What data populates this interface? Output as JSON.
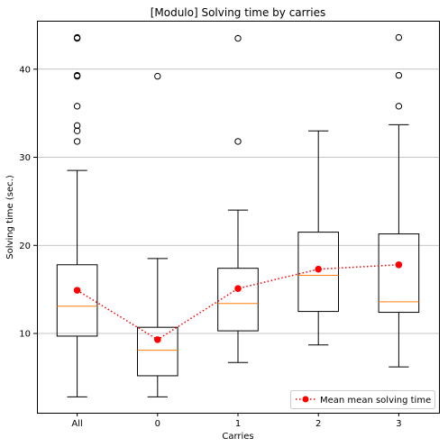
{
  "chart_data": {
    "type": "box",
    "title": "[Modulo] Solving time by carries",
    "xlabel": "Carries",
    "ylabel": "Solving time (sec.)",
    "categories": [
      "All",
      "0",
      "1",
      "2",
      "3"
    ],
    "ylim": [
      1,
      45.5
    ],
    "yticks": [
      10,
      20,
      30,
      40
    ],
    "grid": "horizontal",
    "boxes": [
      {
        "category": "All",
        "whisker_low": 2.8,
        "q1": 9.7,
        "median": 13.1,
        "q3": 17.8,
        "whisker_high": 28.5,
        "outliers": [
          31.8,
          33.0,
          33.6,
          35.8,
          39.2,
          39.3,
          43.5,
          43.6
        ]
      },
      {
        "category": "0",
        "whisker_low": 2.8,
        "q1": 5.2,
        "median": 8.1,
        "q3": 10.7,
        "whisker_high": 18.5,
        "outliers": [
          39.2
        ]
      },
      {
        "category": "1",
        "whisker_low": 6.7,
        "q1": 10.3,
        "median": 13.4,
        "q3": 17.4,
        "whisker_high": 24.0,
        "outliers": [
          31.8,
          43.5
        ]
      },
      {
        "category": "2",
        "whisker_low": 8.7,
        "q1": 12.5,
        "median": 16.6,
        "q3": 21.5,
        "whisker_high": 33.0,
        "outliers": []
      },
      {
        "category": "3",
        "whisker_low": 6.2,
        "q1": 12.4,
        "median": 13.6,
        "q3": 21.3,
        "whisker_high": 33.7,
        "outliers": [
          35.8,
          39.3,
          43.6
        ]
      }
    ],
    "series": [
      {
        "name": "Mean mean solving time",
        "style": "dotted line with markers",
        "values": [
          14.9,
          9.3,
          15.1,
          17.3,
          17.8
        ]
      }
    ],
    "legend_position": "lower-right",
    "colors": {
      "box": "#000000",
      "median": "#ff7f0e",
      "mean": "#ff0000",
      "grid": "#b0b0b0"
    }
  }
}
